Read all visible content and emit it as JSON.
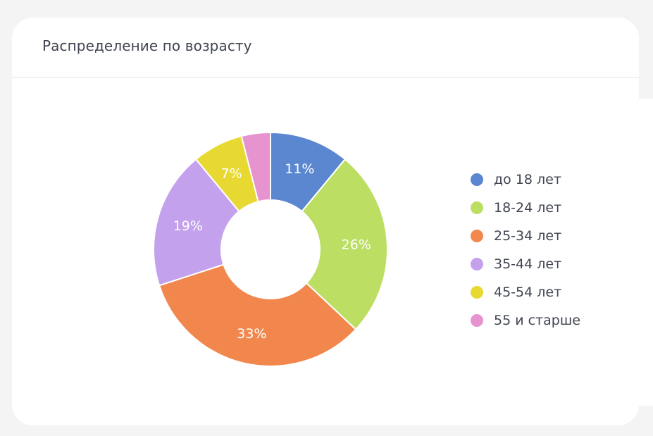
{
  "card": {
    "title": "Распределение по возрасту"
  },
  "chart_data": {
    "type": "pie",
    "variant": "donut",
    "title": "Распределение по возрасту",
    "categories": [
      "до 18 лет",
      "18-24 лет",
      "25-34 лет",
      "35-44 лет",
      "45-54 лет",
      "55 и старше"
    ],
    "values": [
      11,
      26,
      33,
      19,
      7,
      4
    ],
    "unit": "%",
    "colors": [
      "#5b87d0",
      "#bcde62",
      "#f2874e",
      "#c4a1ec",
      "#e8d832",
      "#e693d0"
    ],
    "data_labels": [
      "11%",
      "26%",
      "33%",
      "19%",
      "7%",
      ""
    ],
    "start_angle": "top (12 o'clock)",
    "direction": "clockwise",
    "legend_position": "right"
  },
  "legend": {
    "items": [
      {
        "label": "до 18 лет",
        "color": "#5b87d0"
      },
      {
        "label": "18-24 лет",
        "color": "#bcde62"
      },
      {
        "label": "25-34 лет",
        "color": "#f2874e"
      },
      {
        "label": "35-44 лет",
        "color": "#c4a1ec"
      },
      {
        "label": "45-54 лет",
        "color": "#e8d832"
      },
      {
        "label": "55 и старше",
        "color": "#e693d0"
      }
    ]
  }
}
